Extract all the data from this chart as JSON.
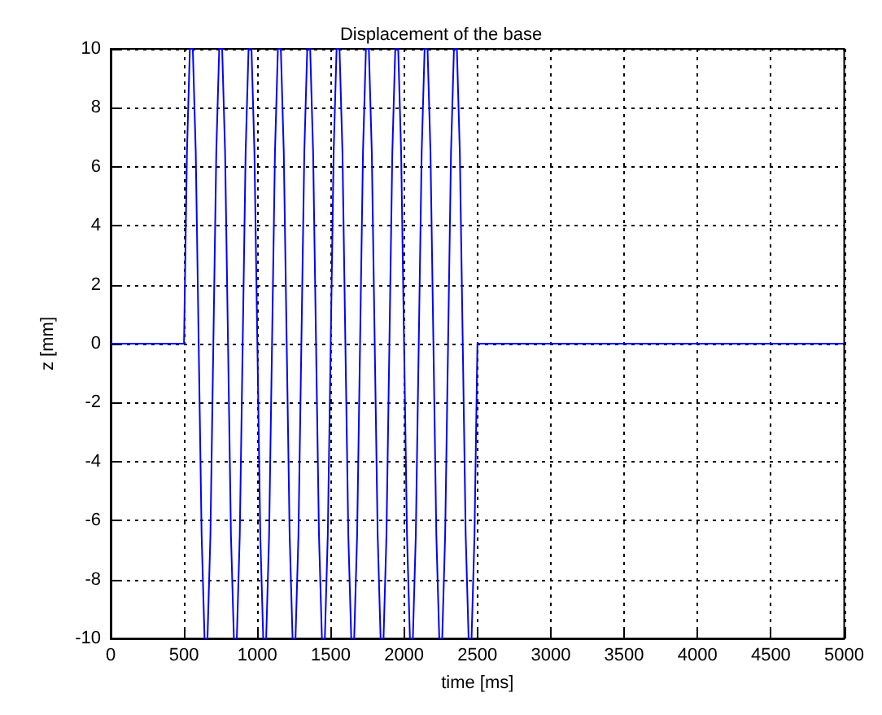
{
  "chart_data": {
    "type": "line",
    "title": "Displacement of the base",
    "xlabel": "time [ms]",
    "ylabel": "z [mm]",
    "xlim": [
      0,
      5000
    ],
    "xticks": [
      0,
      500,
      1000,
      1500,
      2000,
      2500,
      3000,
      3500,
      4000,
      4500,
      5000
    ],
    "ylim": [
      -10,
      10
    ],
    "yticks": [
      -10,
      -8,
      -6,
      -4,
      -2,
      0,
      2,
      4,
      6,
      8,
      10
    ],
    "grid": true,
    "marker": "none",
    "line_style": "solid",
    "x": [
      0,
      500,
      520,
      540,
      560,
      580,
      600,
      620,
      640,
      660,
      680,
      700,
      720,
      740,
      760,
      780,
      800,
      820,
      840,
      860,
      880,
      900,
      920,
      940,
      960,
      980,
      1000,
      1020,
      1040,
      1060,
      1080,
      1100,
      1120,
      1140,
      1160,
      1180,
      1200,
      1220,
      1240,
      1260,
      1280,
      1300,
      1320,
      1340,
      1360,
      1380,
      1400,
      1420,
      1440,
      1460,
      1480,
      1500,
      1520,
      1540,
      1560,
      1580,
      1600,
      1620,
      1640,
      1660,
      1680,
      1700,
      1720,
      1740,
      1760,
      1780,
      1800,
      1820,
      1840,
      1860,
      1880,
      1900,
      1920,
      1940,
      1960,
      1980,
      2000,
      2020,
      2040,
      2060,
      2080,
      2100,
      2120,
      2140,
      2160,
      2180,
      2200,
      2220,
      2240,
      2260,
      2280,
      2300,
      2320,
      2340,
      2360,
      2380,
      2400,
      2420,
      2440,
      2460,
      2480,
      2500,
      5000
    ],
    "series": [
      {
        "color": "#0000ff",
        "values": [
          0,
          0,
          6.5,
          10,
          10,
          6.5,
          0,
          -6.5,
          -10,
          -10,
          -6.5,
          0,
          6.5,
          10,
          10,
          6.5,
          0,
          -6.5,
          -10,
          -10,
          -6.5,
          0,
          6.5,
          10,
          10,
          6.5,
          0,
          -6.5,
          -10,
          -10,
          -6.5,
          0,
          6.5,
          10,
          10,
          6.5,
          0,
          -6.5,
          -10,
          -10,
          -6.5,
          0,
          6.5,
          10,
          10,
          6.5,
          0,
          -6.5,
          -10,
          -10,
          -6.5,
          0,
          6.5,
          10,
          10,
          6.5,
          0,
          -6.5,
          -10,
          -10,
          -6.5,
          0,
          6.5,
          10,
          10,
          6.5,
          0,
          -6.5,
          -10,
          -10,
          -6.5,
          0,
          6.5,
          10,
          10,
          6.5,
          0,
          -6.5,
          -10,
          -10,
          -6.5,
          0,
          6.5,
          10,
          10,
          6.5,
          0,
          -6.5,
          -10,
          -10,
          -6.5,
          0,
          6.5,
          10,
          10,
          6.5,
          0,
          -6.5,
          -10,
          -10,
          -6.5,
          0,
          0
        ]
      }
    ]
  }
}
